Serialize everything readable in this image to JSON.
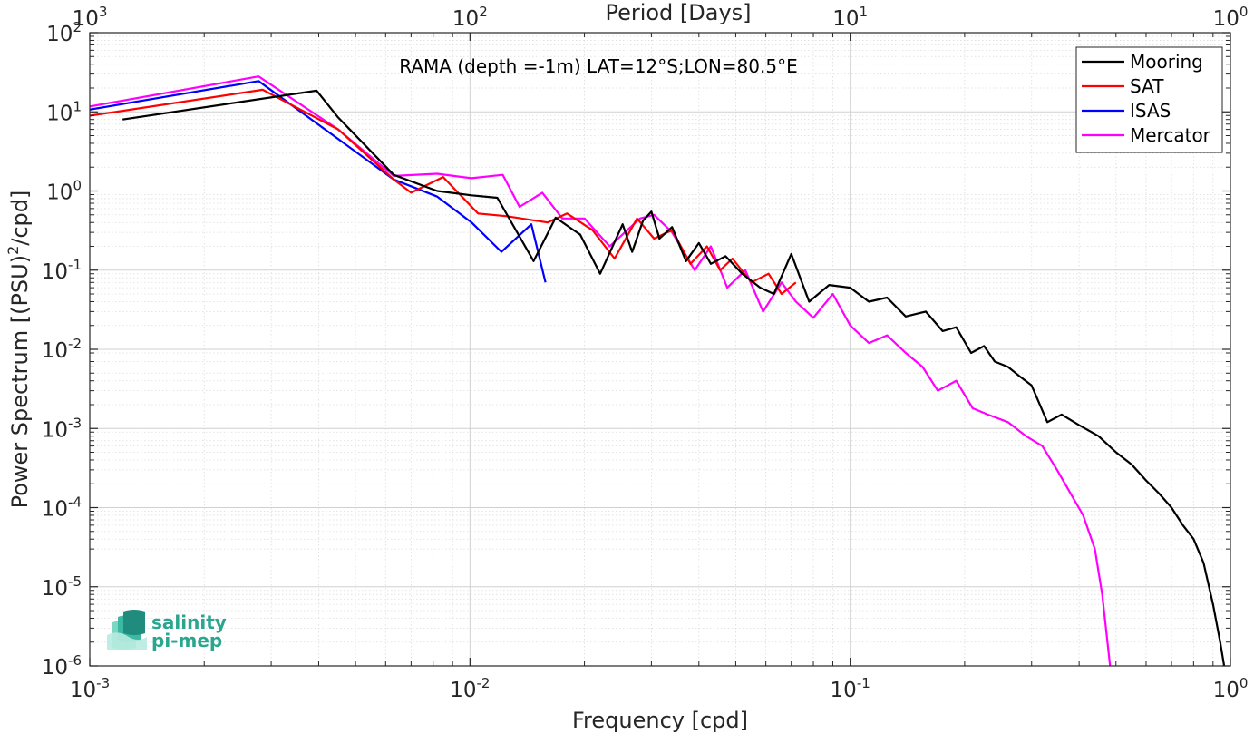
{
  "chart_data": {
    "type": "line",
    "title": "",
    "annotation": "RAMA (depth =-1m) LAT=12°S;LON=80.5°E",
    "xlabel": "Frequency [cpd]",
    "ylabel": "Power Spectrum [(PSU)²/cpd]",
    "top_xlabel": "Period [Days]",
    "xscale": "log",
    "yscale": "log",
    "xlim": [
      0.001,
      1
    ],
    "ylim": [
      1e-06,
      100
    ],
    "grid": true,
    "legend_position": "top-right",
    "x_ticks": [
      {
        "value": 0.001,
        "base": "10",
        "exp": "-3"
      },
      {
        "value": 0.01,
        "base": "10",
        "exp": "-2"
      },
      {
        "value": 0.1,
        "base": "10",
        "exp": "-1"
      },
      {
        "value": 1,
        "base": "10",
        "exp": "0"
      }
    ],
    "top_ticks": [
      {
        "value": 1000,
        "base": "10",
        "exp": "3"
      },
      {
        "value": 100,
        "base": "10",
        "exp": "2"
      },
      {
        "value": 10,
        "base": "10",
        "exp": "1"
      },
      {
        "value": 1,
        "base": "10",
        "exp": "0"
      }
    ],
    "y_ticks": [
      {
        "value": 100,
        "base": "10",
        "exp": "2"
      },
      {
        "value": 10,
        "base": "10",
        "exp": "1"
      },
      {
        "value": 1,
        "base": "10",
        "exp": "0"
      },
      {
        "value": 0.1,
        "base": "10",
        "exp": "-1"
      },
      {
        "value": 0.01,
        "base": "10",
        "exp": "-2"
      },
      {
        "value": 0.001,
        "base": "10",
        "exp": "-3"
      },
      {
        "value": 0.0001,
        "base": "10",
        "exp": "-4"
      },
      {
        "value": 1e-05,
        "base": "10",
        "exp": "-5"
      },
      {
        "value": 1e-06,
        "base": "10",
        "exp": "-6"
      }
    ],
    "series": [
      {
        "name": "Mooring",
        "color": "#000000",
        "points": [
          [
            0.00122,
            8.0
          ],
          [
            0.00395,
            18.5
          ],
          [
            0.0045,
            8.5
          ],
          [
            0.0063,
            1.6
          ],
          [
            0.0082,
            1.0
          ],
          [
            0.0101,
            0.88
          ],
          [
            0.0118,
            0.82
          ],
          [
            0.0147,
            0.13
          ],
          [
            0.0168,
            0.46
          ],
          [
            0.0195,
            0.28
          ],
          [
            0.022,
            0.09
          ],
          [
            0.0252,
            0.38
          ],
          [
            0.0267,
            0.17
          ],
          [
            0.0285,
            0.42
          ],
          [
            0.03,
            0.55
          ],
          [
            0.0315,
            0.25
          ],
          [
            0.034,
            0.35
          ],
          [
            0.037,
            0.13
          ],
          [
            0.04,
            0.22
          ],
          [
            0.043,
            0.12
          ],
          [
            0.047,
            0.15
          ],
          [
            0.052,
            0.09
          ],
          [
            0.058,
            0.06
          ],
          [
            0.063,
            0.05
          ],
          [
            0.07,
            0.16
          ],
          [
            0.078,
            0.04
          ],
          [
            0.088,
            0.065
          ],
          [
            0.1,
            0.06
          ],
          [
            0.112,
            0.04
          ],
          [
            0.125,
            0.045
          ],
          [
            0.14,
            0.026
          ],
          [
            0.158,
            0.03
          ],
          [
            0.175,
            0.017
          ],
          [
            0.19,
            0.019
          ],
          [
            0.208,
            0.009
          ],
          [
            0.225,
            0.011
          ],
          [
            0.24,
            0.007
          ],
          [
            0.26,
            0.006
          ],
          [
            0.28,
            0.0045
          ],
          [
            0.3,
            0.0035
          ],
          [
            0.33,
            0.0012
          ],
          [
            0.36,
            0.0015
          ],
          [
            0.4,
            0.0011
          ],
          [
            0.45,
            0.0008
          ],
          [
            0.5,
            0.0005
          ],
          [
            0.55,
            0.00035
          ],
          [
            0.6,
            0.00022
          ],
          [
            0.65,
            0.00015
          ],
          [
            0.7,
            0.0001
          ],
          [
            0.75,
            6e-05
          ],
          [
            0.8,
            4e-05
          ],
          [
            0.85,
            2e-05
          ],
          [
            0.9,
            6e-06
          ],
          [
            0.94,
            2e-06
          ],
          [
            0.97,
            8e-07
          ]
        ]
      },
      {
        "name": "SAT",
        "color": "#ff0000",
        "points": [
          [
            0.00098,
            8.8
          ],
          [
            0.00285,
            19.0
          ],
          [
            0.0045,
            6.0
          ],
          [
            0.0063,
            1.4
          ],
          [
            0.007,
            0.95
          ],
          [
            0.0085,
            1.5
          ],
          [
            0.0105,
            0.52
          ],
          [
            0.0125,
            0.48
          ],
          [
            0.016,
            0.4
          ],
          [
            0.018,
            0.52
          ],
          [
            0.021,
            0.32
          ],
          [
            0.024,
            0.14
          ],
          [
            0.0275,
            0.45
          ],
          [
            0.0305,
            0.25
          ],
          [
            0.034,
            0.32
          ],
          [
            0.038,
            0.12
          ],
          [
            0.042,
            0.2
          ],
          [
            0.0455,
            0.1
          ],
          [
            0.049,
            0.14
          ],
          [
            0.055,
            0.07
          ],
          [
            0.061,
            0.09
          ],
          [
            0.066,
            0.05
          ],
          [
            0.072,
            0.07
          ]
        ]
      },
      {
        "name": "ISAS",
        "color": "#0000ff",
        "points": [
          [
            0.00098,
            10.5
          ],
          [
            0.00278,
            24.5
          ],
          [
            0.0063,
            1.4
          ],
          [
            0.0082,
            0.85
          ],
          [
            0.0101,
            0.4
          ],
          [
            0.0121,
            0.17
          ],
          [
            0.0145,
            0.38
          ],
          [
            0.0158,
            0.07
          ]
        ]
      },
      {
        "name": "Mercator",
        "color": "#ff00ff",
        "points": [
          [
            0.00098,
            11.5
          ],
          [
            0.00278,
            28.0
          ],
          [
            0.0045,
            6.0
          ],
          [
            0.0063,
            1.55
          ],
          [
            0.0082,
            1.65
          ],
          [
            0.0101,
            1.45
          ],
          [
            0.0122,
            1.6
          ],
          [
            0.0135,
            0.63
          ],
          [
            0.0155,
            0.95
          ],
          [
            0.0175,
            0.45
          ],
          [
            0.02,
            0.45
          ],
          [
            0.0233,
            0.2
          ],
          [
            0.028,
            0.45
          ],
          [
            0.0305,
            0.5
          ],
          [
            0.034,
            0.3
          ],
          [
            0.039,
            0.1
          ],
          [
            0.043,
            0.2
          ],
          [
            0.0475,
            0.06
          ],
          [
            0.053,
            0.1
          ],
          [
            0.059,
            0.03
          ],
          [
            0.066,
            0.07
          ],
          [
            0.072,
            0.04
          ],
          [
            0.08,
            0.025
          ],
          [
            0.09,
            0.05
          ],
          [
            0.1,
            0.02
          ],
          [
            0.112,
            0.012
          ],
          [
            0.125,
            0.015
          ],
          [
            0.14,
            0.009
          ],
          [
            0.155,
            0.006
          ],
          [
            0.17,
            0.003
          ],
          [
            0.19,
            0.004
          ],
          [
            0.21,
            0.0018
          ],
          [
            0.23,
            0.0015
          ],
          [
            0.26,
            0.0012
          ],
          [
            0.29,
            0.0008
          ],
          [
            0.32,
            0.0006
          ],
          [
            0.35,
            0.0003
          ],
          [
            0.38,
            0.00015
          ],
          [
            0.41,
            8e-05
          ],
          [
            0.44,
            3e-05
          ],
          [
            0.46,
            8e-06
          ],
          [
            0.475,
            2e-06
          ],
          [
            0.485,
            8e-07
          ]
        ]
      }
    ]
  },
  "logo": {
    "line1": "salinity",
    "line2": "pi-mep"
  }
}
